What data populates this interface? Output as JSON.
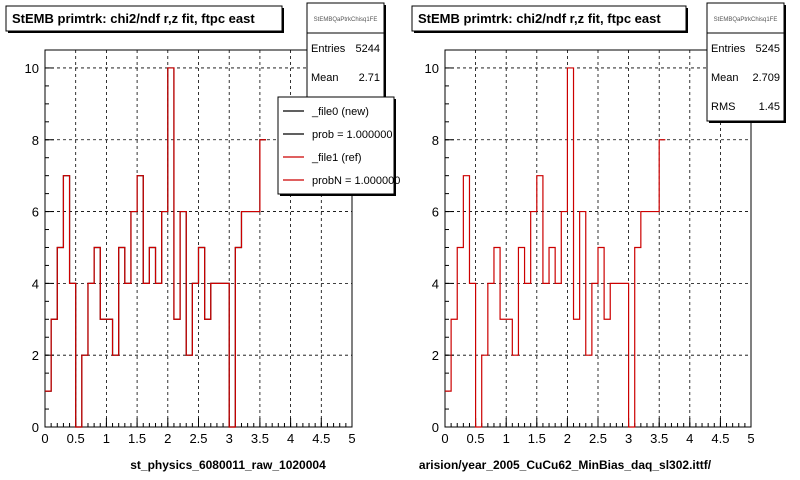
{
  "chart_data": [
    {
      "type": "histogram",
      "title": "StEMB primtrk: chi2/ndf r,z fit, ftpc east",
      "xlabel": "st_physics_6080011_raw_1020004",
      "xlim": [
        0,
        5
      ],
      "ylim": [
        0,
        10.5
      ],
      "x_ticks": [
        "0",
        "0.5",
        "1",
        "1.5",
        "2",
        "2.5",
        "3",
        "3.5",
        "4",
        "4.5",
        "5"
      ],
      "y_ticks": [
        "0",
        "2",
        "4",
        "6",
        "8",
        "10"
      ],
      "grid": true,
      "stats": {
        "name": "StEMBQaPtrkChisq1FE",
        "rows": [
          {
            "label": "Entries",
            "value": "5244"
          },
          {
            "label": "Mean",
            "value": "2.71"
          }
        ]
      },
      "legend": {
        "placement": "top-right",
        "entries": [
          {
            "label": "_file0 (new)",
            "color": "#000000"
          },
          {
            "label": "prob = 1.000000",
            "color": "#000000"
          },
          {
            "label": "_file1 (ref)",
            "color": "#cc0000"
          },
          {
            "label": "probN = 1.000000",
            "color": "#cc0000"
          }
        ]
      },
      "bin_width": 0.1,
      "series": [
        {
          "name": "_file0 (new)",
          "color": "#000000",
          "values": [
            1,
            3,
            5,
            7,
            4,
            0,
            2,
            4,
            5,
            3,
            3,
            2,
            5,
            4,
            6,
            7,
            4,
            5,
            4,
            6,
            10,
            3,
            6,
            2,
            4,
            5,
            3,
            4,
            4,
            4,
            0,
            5,
            6,
            6,
            6,
            8
          ]
        },
        {
          "name": "_file1 (ref)",
          "color": "#cc0000",
          "values": [
            1,
            3,
            5,
            7,
            4,
            0,
            2,
            4,
            5,
            3,
            3,
            2,
            5,
            4,
            6,
            7,
            4,
            5,
            4,
            6,
            10,
            3,
            6,
            2,
            4,
            5,
            3,
            4,
            4,
            4,
            0,
            5,
            6,
            6,
            6,
            8
          ]
        }
      ]
    },
    {
      "type": "histogram",
      "title": "StEMB primtrk: chi2/ndf r,z fit, ftpc east",
      "xlabel": "arision/year_2005_CuCu62_MinBias_daq_sl302.ittf/",
      "xlim": [
        0,
        5
      ],
      "ylim": [
        0,
        10.5
      ],
      "x_ticks": [
        "0",
        "0.5",
        "1",
        "1.5",
        "2",
        "2.5",
        "3",
        "3.5",
        "4",
        "4.5",
        "5"
      ],
      "y_ticks": [
        "0",
        "2",
        "4",
        "6",
        "8",
        "10"
      ],
      "grid": true,
      "stats": {
        "name": "StEMBQaPtrkChisq1FE",
        "rows": [
          {
            "label": "Entries",
            "value": "5245"
          },
          {
            "label": "Mean",
            "value": "2.709"
          },
          {
            "label": "RMS",
            "value": "1.45"
          }
        ]
      },
      "bin_width": 0.1,
      "series": [
        {
          "name": "_file1 (ref)",
          "color": "#cc0000",
          "values": [
            1,
            3,
            5,
            7,
            4,
            0,
            2,
            4,
            5,
            3,
            3,
            2,
            5,
            4,
            6,
            7,
            4,
            5,
            4,
            6,
            10,
            3,
            6,
            2,
            4,
            5,
            3,
            4,
            4,
            4,
            0,
            5,
            6,
            6,
            6,
            8
          ]
        }
      ]
    }
  ]
}
